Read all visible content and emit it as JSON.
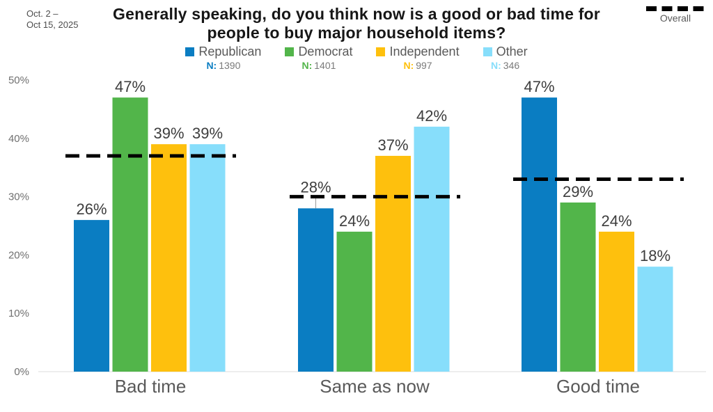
{
  "meta": {
    "date_range_line1": "Oct. 2 –",
    "date_range_line2": "Oct 15, 2025"
  },
  "header": {
    "title_line1": "Generally speaking, do you think now is a good or bad time for",
    "title_line2": "people to buy major household items?"
  },
  "overall_legend": {
    "label": "Overall"
  },
  "legend": {
    "n_prefix": "N:"
  },
  "chart_data": {
    "type": "bar",
    "title": "Generally speaking, do you think now is a good or bad time for people to buy major household items?",
    "date_range": "Oct. 2 – Oct 15, 2025",
    "categories": [
      "Bad time",
      "Same as now",
      "Good time"
    ],
    "series": [
      {
        "name": "Republican",
        "n": "1390",
        "color": "#0a7dc2",
        "values": [
          26,
          28,
          47
        ]
      },
      {
        "name": "Democrat",
        "n": "1401",
        "color": "#52b54a",
        "values": [
          47,
          24,
          29
        ]
      },
      {
        "name": "Independent",
        "n": "997",
        "color": "#fec00d",
        "values": [
          39,
          37,
          24
        ]
      },
      {
        "name": "Other",
        "n": "346",
        "color": "#87defb",
        "values": [
          39,
          42,
          18
        ]
      }
    ],
    "overall_line": {
      "label": "Overall",
      "values": [
        37,
        30,
        33
      ],
      "color": "#000000",
      "style": "dashed"
    },
    "xlabel": "",
    "ylabel": "",
    "ylim": [
      0,
      50
    ],
    "ytick_step": 10,
    "value_suffix": "%",
    "grid": false,
    "legend_position": "top"
  }
}
